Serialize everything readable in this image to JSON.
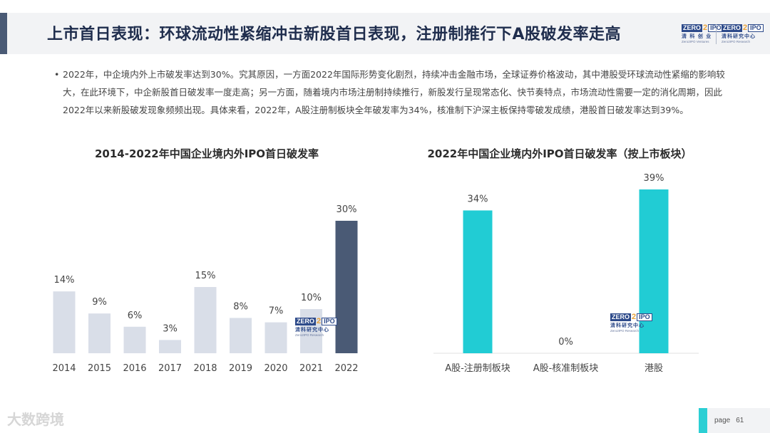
{
  "header": {
    "title": "上市首日表现：环球流动性紧缩冲击新股首日表现，注册制推行下A股破发率走高"
  },
  "logos": {
    "left": {
      "box_a": "ZERO",
      "num": "2",
      "box_b": "IPO",
      "cn": "清 科 创 业",
      "en": "Zero2IPO Ventures"
    },
    "right": {
      "box_a": "ZERO",
      "num": "2",
      "box_b": "IPO",
      "cn": "清科研究中心",
      "en": "Zero2IPO Research"
    }
  },
  "bullet": {
    "symbol": "•",
    "text": "2022年，中企境内外上市破发率达到30%。究其原因，一方面2022年国际形势变化剧烈，持续冲击金融市场，全球证券价格波动，其中港股受环球流动性紧缩的影响较大，在此环境下，中企新股首日破发率一度走高；另一方面，随着境内市场注册制持续推行，新股发行呈现常态化、快节奏特点，市场流动性需要一定的消化周期，因此2022年以来新股破发现象频频出现。具体来看，2022年，A股注册制板块全年破发率为34%，核准制下沪深主板保持零破发成绩，港股首日破发率达到39%。"
  },
  "watermark": {
    "box_a": "ZERO",
    "num": "2",
    "box_b": "IPO",
    "cn": "清科研究中心",
    "en": "Zero2IPO Research"
  },
  "chart_data": [
    {
      "type": "bar",
      "title": "2014-2022年中国企业境内外IPO首日破发率",
      "categories": [
        "2014",
        "2015",
        "2016",
        "2017",
        "2018",
        "2019",
        "2020",
        "2021",
        "2022"
      ],
      "values": [
        14,
        9,
        6,
        3,
        15,
        8,
        7,
        10,
        30
      ],
      "value_labels": [
        "14%",
        "9%",
        "6%",
        "3%",
        "15%",
        "8%",
        "7%",
        "10%",
        "30%"
      ],
      "unit": "%",
      "ylim": [
        0,
        30
      ],
      "grid": false,
      "colors": {
        "default": "#d9dee8",
        "highlight": "#4a5a75"
      },
      "highlight_index": 8
    },
    {
      "type": "bar",
      "title": "2022年中国企业境内外IPO首日破发率（按上市板块）",
      "categories": [
        "A股-注册制板块",
        "A股-核准制板块",
        "港股"
      ],
      "values": [
        34,
        0,
        39
      ],
      "value_labels": [
        "34%",
        "0%",
        "39%"
      ],
      "unit": "%",
      "ylim": [
        0,
        39
      ],
      "grid": false,
      "colors": {
        "default": "#21ccd4"
      }
    }
  ],
  "footer": {
    "brand": "大数跨境",
    "page_label": "page",
    "page_number": "61"
  }
}
